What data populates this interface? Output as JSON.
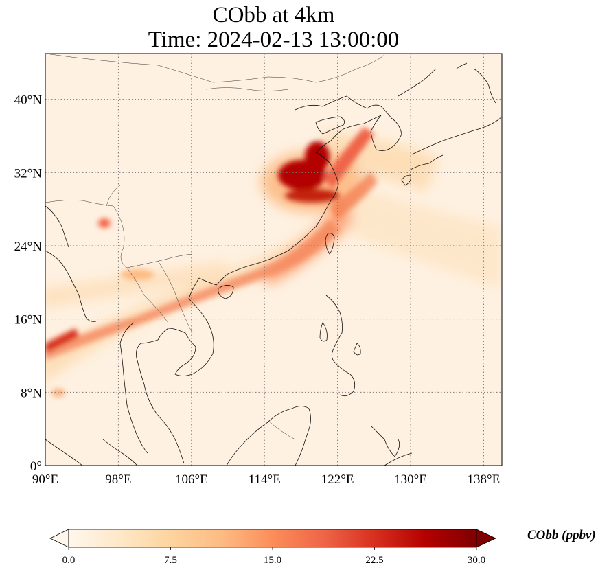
{
  "title": {
    "line1": "CObb at 4km",
    "line2": "Time: 2024-02-13 13:00:00"
  },
  "map": {
    "projection": "PlateCarree",
    "lon_range": [
      90,
      140
    ],
    "lat_range": [
      0,
      45
    ],
    "gridlines": "dotted",
    "lon_ticks": [
      {
        "value": 90,
        "label": "90°E"
      },
      {
        "value": 98,
        "label": "98°E"
      },
      {
        "value": 106,
        "label": "106°E"
      },
      {
        "value": 114,
        "label": "114°E"
      },
      {
        "value": 122,
        "label": "122°E"
      },
      {
        "value": 130,
        "label": "130°E"
      },
      {
        "value": 138,
        "label": "138°E"
      }
    ],
    "lat_ticks": [
      {
        "value": 0,
        "label": "0°"
      },
      {
        "value": 8,
        "label": "8°N"
      },
      {
        "value": 16,
        "label": "16°N"
      },
      {
        "value": 24,
        "label": "24°N"
      },
      {
        "value": 32,
        "label": "32°N"
      },
      {
        "value": 40,
        "label": "40°N"
      }
    ],
    "field_hotspots": [
      {
        "lon": 117.5,
        "lat": 31.0,
        "level": 30
      },
      {
        "lon": 118.5,
        "lat": 33.5,
        "level": 27
      },
      {
        "lon": 120.0,
        "lat": 29.0,
        "level": 24
      },
      {
        "lon": 96.5,
        "lat": 26.5,
        "level": 20
      },
      {
        "lon": 91.0,
        "lat": 13.5,
        "level": 22
      }
    ]
  },
  "colorbar": {
    "label": "CObb (ppbv)",
    "colormap": "OrRd",
    "min": 0,
    "max": 30,
    "extend": "both",
    "ticks": [
      "0.0",
      "7.5",
      "15.0",
      "22.5",
      "30.0"
    ],
    "tick_values": [
      0,
      7.5,
      15,
      22.5,
      30
    ],
    "colors": [
      "#fff7ec",
      "#fee8c8",
      "#fdd49e",
      "#fdbb84",
      "#fc8d59",
      "#ef6548",
      "#d7301f",
      "#b30000",
      "#7f0000"
    ]
  }
}
